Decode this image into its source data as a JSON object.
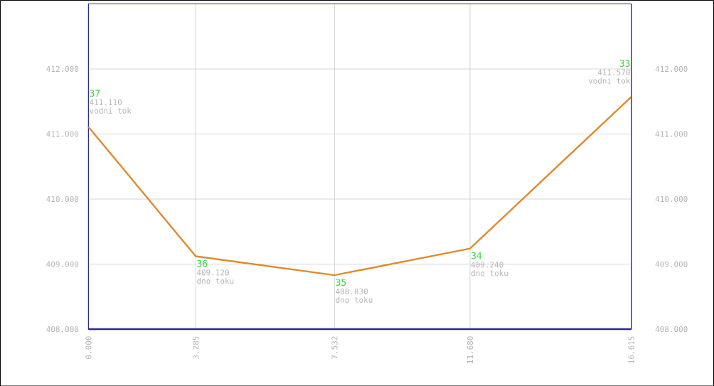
{
  "chart_data": {
    "type": "line",
    "x": [
      0,
      3.285,
      7.532,
      11.68,
      16.615
    ],
    "series": [
      {
        "color": "#e08a2c",
        "values": [
          411.11,
          409.12,
          408.83,
          409.24,
          411.57
        ],
        "value_labels": [
          "411.110",
          "409.120",
          "408.830",
          "409.240",
          "411.570"
        ]
      }
    ],
    "annotations": [
      "37",
      "vodni tok",
      "36",
      "dno toku",
      "35",
      "dno toku",
      "34",
      "dno toku",
      "33",
      "vodni tok"
    ],
    "xlim": [
      0,
      16.615
    ],
    "xticks": [
      {
        "value": 0,
        "label": "0.000"
      },
      3.285,
      7.532,
      {
        "value": 11.68,
        "label": "11.680"
      },
      16.615
    ],
    "ylim": [
      408,
      413
    ],
    "yticks": [
      {
        "value": 408,
        "label": "408.000"
      },
      {
        "value": 409,
        "label": "409.000"
      },
      {
        "value": 410,
        "label": "410.000"
      },
      {
        "value": 411,
        "label": "411.000"
      },
      {
        "value": 412,
        "label": "412.000"
      }
    ],
    "y2lim": [
      408,
      413
    ],
    "y2ticks": [
      {
        "value": 408,
        "label": "408.000"
      },
      {
        "value": 409,
        "label": "409.000"
      },
      {
        "value": 410,
        "label": "410.000"
      },
      {
        "value": 411,
        "label": "411.000"
      },
      {
        "value": 412,
        "label": "412.000"
      }
    ],
    "grid": true,
    "marker": "none",
    "line_style": "solid"
  }
}
